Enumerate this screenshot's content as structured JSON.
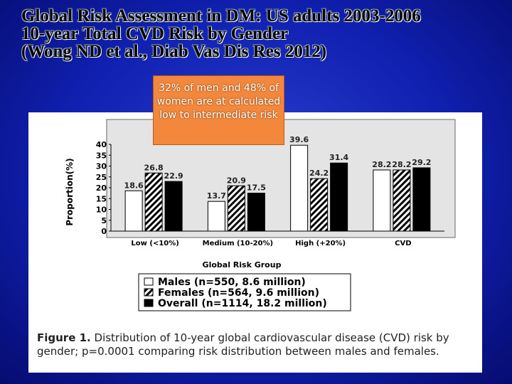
{
  "slide": {
    "title_lines": [
      "Global Risk Assessment in DM: US adults 2003-2006",
      "10-year Total CVD Risk by Gender",
      "(Wong ND et al., Diab Vas Dis Res 2012)"
    ],
    "callout": "32% of men and 48% of women are at calculated low to intermediate risk",
    "caption_label": "Figure 1.",
    "caption": "Distribution of 10-year global cardiovascular disease (CVD) risk by gender; p=0.0001 comparing risk distribution between males and females."
  },
  "chart_data": {
    "type": "bar",
    "x_label": "Global Risk Group",
    "y_label": "Proportion(%)",
    "categories": [
      "Low (<10%)",
      "Medium (10-20%)",
      "High (+20%)",
      "CVD"
    ],
    "series": [
      {
        "name": "Males (n=550, 8.6 million)",
        "color": "#ffffff",
        "values": [
          18.6,
          13.7,
          39.6,
          28.2
        ]
      },
      {
        "name": "Females (n=564, 9.6 million)",
        "color": "hatch",
        "values": [
          26.8,
          20.9,
          24.2,
          28.2
        ]
      },
      {
        "name": "Overall (n=1114, 18.2 million)",
        "color": "#000000",
        "values": [
          22.9,
          17.5,
          31.4,
          29.2
        ]
      }
    ],
    "ylim": [
      0,
      40
    ],
    "yticks": [
      0,
      5,
      10,
      15,
      20,
      25,
      30,
      35,
      40
    ],
    "grid": false
  }
}
